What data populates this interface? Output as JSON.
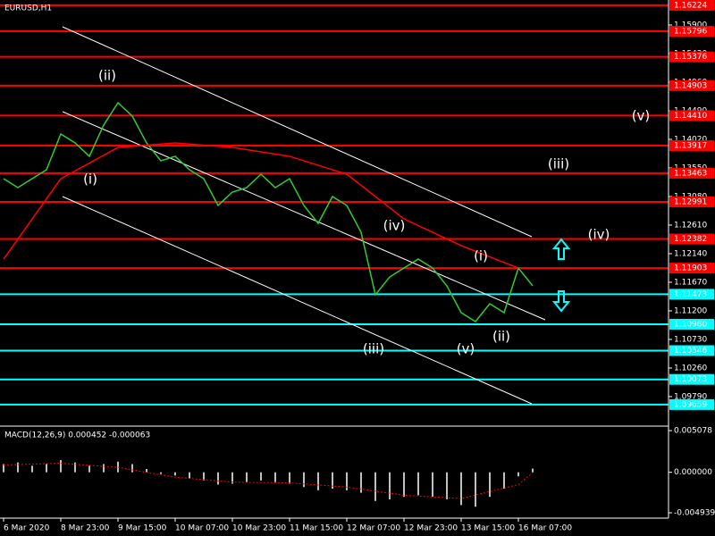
{
  "chart_data": {
    "type": "line",
    "title": "EURUSD,H1",
    "xlim": [
      -1,
      186
    ],
    "xticks": [
      {
        "value": 0,
        "label": "6 Mar 2020"
      },
      {
        "value": 16,
        "label": "8 Mar 23:00"
      },
      {
        "value": 32,
        "label": "9 Mar 15:00"
      },
      {
        "value": 48,
        "label": "10 Mar 07:00"
      },
      {
        "value": 64,
        "label": "10 Mar 23:00"
      },
      {
        "value": 80,
        "label": "11 Mar 15:00"
      },
      {
        "value": 96,
        "label": "12 Mar 07:00"
      },
      {
        "value": 112,
        "label": "12 Mar 23:00"
      },
      {
        "value": 128,
        "label": "13 Mar 15:00"
      },
      {
        "value": 144,
        "label": "16 Mar 07:00"
      }
    ],
    "ylim": [
      1.09334,
      1.16311
    ],
    "yticks": [
      {
        "value": 1.159,
        "label": "1.15900"
      },
      {
        "value": 1.1543,
        "label": "1.15430"
      },
      {
        "value": 1.1496,
        "label": "1.14960"
      },
      {
        "value": 1.1449,
        "label": "1.14490"
      },
      {
        "value": 1.1402,
        "label": "1.14020"
      },
      {
        "value": 1.1355,
        "label": "1.13550"
      },
      {
        "value": 1.1308,
        "label": "1.13080"
      },
      {
        "value": 1.1261,
        "label": "1.12610"
      },
      {
        "value": 1.1214,
        "label": "1.12140"
      },
      {
        "value": 1.1167,
        "label": "1.11670"
      },
      {
        "value": 1.112,
        "label": "1.11200"
      },
      {
        "value": 1.1073,
        "label": "1.10730"
      },
      {
        "value": 1.1026,
        "label": "1.10260"
      },
      {
        "value": 1.0979,
        "label": "1.09790"
      }
    ],
    "levels": [
      {
        "value": 1.16224,
        "label": "1.16224",
        "color": "#ff0000"
      },
      {
        "value": 1.15796,
        "label": "1.15796",
        "color": "#ff0000"
      },
      {
        "value": 1.15376,
        "label": "1.15376",
        "color": "#ff0000"
      },
      {
        "value": 1.14903,
        "label": "1.14903",
        "color": "#ff0000"
      },
      {
        "value": 1.1441,
        "label": "1.14410",
        "color": "#ff0000"
      },
      {
        "value": 1.13917,
        "label": "1.13917",
        "color": "#ff0000"
      },
      {
        "value": 1.13463,
        "label": "1.13463",
        "color": "#ff0000"
      },
      {
        "value": 1.12991,
        "label": "1.12991",
        "color": "#ff0000"
      },
      {
        "value": 1.12382,
        "label": "1.12382",
        "color": "#ff0000"
      },
      {
        "value": 1.11903,
        "label": "1.11903",
        "color": "#ff0000"
      },
      {
        "value": 1.11473,
        "label": "1.11473",
        "color": "#00ffff"
      },
      {
        "value": 1.1098,
        "label": "1.10980",
        "color": "#00ffff"
      },
      {
        "value": 1.10546,
        "label": "1.10546",
        "color": "#00ffff"
      },
      {
        "value": 1.10073,
        "label": "1.10073",
        "color": "#00ffff"
      },
      {
        "value": 1.09659,
        "label": "1.09659",
        "color": "#00ffff"
      }
    ],
    "series": [
      {
        "name": "Close",
        "color": "#32cd32",
        "x": [
          0,
          4,
          8,
          12,
          16,
          20,
          24,
          28,
          32,
          36,
          40,
          44,
          48,
          52,
          56,
          60,
          64,
          68,
          72,
          76,
          80,
          84,
          88,
          92,
          96,
          100,
          104,
          108,
          112,
          116,
          120,
          124,
          128,
          132,
          136,
          140,
          144,
          148
        ],
        "values": [
          1.13373,
          1.13226,
          1.13373,
          1.1352,
          1.14108,
          1.13961,
          1.13741,
          1.14255,
          1.14622,
          1.14402,
          1.13961,
          1.13667,
          1.13741,
          1.1352,
          1.13373,
          1.12933,
          1.13153,
          1.13226,
          1.13447,
          1.13226,
          1.13373,
          1.12933,
          1.12639,
          1.1308,
          1.12933,
          1.12492,
          1.11464,
          1.11757,
          1.11904,
          1.12051,
          1.11904,
          1.11611,
          1.1117,
          1.11023,
          1.11317,
          1.1117,
          1.11904,
          1.11611
        ]
      },
      {
        "name": "MA",
        "color": "#ff0000",
        "x": [
          0,
          16,
          32,
          48,
          64,
          80,
          96,
          112,
          128,
          144
        ],
        "values": [
          1.12051,
          1.13373,
          1.13887,
          1.13961,
          1.13887,
          1.13741,
          1.13447,
          1.12712,
          1.12272,
          1.11904
        ]
      }
    ],
    "wave_labels": [
      "(ii)",
      "(i)",
      "(iv)",
      "(iii)",
      "(i)",
      "(v)",
      "(ii)",
      "(v)",
      "(iii)",
      "(iv)"
    ],
    "macd": {
      "title": "MACD(12,26,9) 0.000452 -0.000063",
      "ylim": [
        -0.00559,
        0.0053
      ],
      "yticks": [
        0.005078,
        {
          "value": 0,
          "label": "0.000000"
        },
        -0.004939
      ],
      "color": "#c0c0c0",
      "signal_color": "#ff0000",
      "x": [
        0,
        4,
        8,
        12,
        16,
        20,
        24,
        28,
        32,
        36,
        40,
        44,
        48,
        52,
        56,
        60,
        64,
        68,
        72,
        76,
        80,
        84,
        88,
        92,
        96,
        100,
        104,
        108,
        112,
        116,
        120,
        124,
        128,
        132,
        136,
        140,
        144,
        148
      ],
      "values": [
        0.001,
        0.0012,
        0.0008,
        0.001,
        0.0015,
        0.0012,
        0.0008,
        0.001,
        0.0013,
        0.001,
        0.0004,
        -0.0002,
        -0.0004,
        -0.0008,
        -0.001,
        -0.0015,
        -0.0014,
        -0.0012,
        -0.001,
        -0.0012,
        -0.0014,
        -0.0018,
        -0.0022,
        -0.002,
        -0.0022,
        -0.0025,
        -0.0035,
        -0.0033,
        -0.003,
        -0.0028,
        -0.003,
        -0.0033,
        -0.004,
        -0.0042,
        -0.003,
        -0.002,
        -0.0005,
        0.000452
      ],
      "signal_x": [
        0,
        16,
        32,
        48,
        64,
        80,
        96,
        112,
        128,
        144,
        148
      ],
      "signal": [
        0.0009,
        0.0011,
        0.0006,
        -0.0006,
        -0.0012,
        -0.0013,
        -0.0018,
        -0.0028,
        -0.0032,
        -0.0015,
        -6.3e-05
      ]
    }
  }
}
